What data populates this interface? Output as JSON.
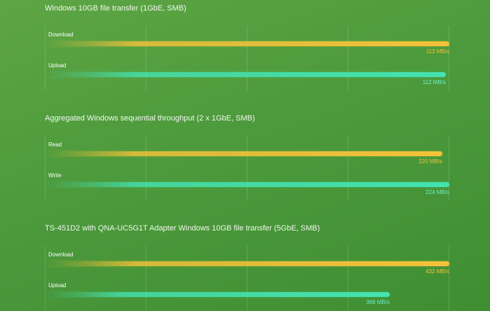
{
  "colors": {
    "download": "#f6c23a",
    "upload": "#44e3b1",
    "read": "#f6c23a",
    "write": "#44e3b1",
    "download_label": "#f6c23a",
    "upload_label": "#6ff0c8"
  },
  "chart_data": [
    {
      "type": "bar",
      "title": "Windows 10GB file transfer (1GbE, SMB)",
      "orientation": "horizontal",
      "unit": "MB/s",
      "series": [
        {
          "name": "Download",
          "value": 113,
          "value_label": "113 MB/s",
          "color_key": "download"
        },
        {
          "name": "Upload",
          "value": 112,
          "value_label": "112 MB/s",
          "color_key": "upload"
        }
      ],
      "max": 113
    },
    {
      "type": "bar",
      "title": "Aggregated Windows sequential throughput (2 x 1GbE, SMB)",
      "orientation": "horizontal",
      "unit": "MB/s",
      "series": [
        {
          "name": "Read",
          "value": 220,
          "value_label": "220 MB/s",
          "color_key": "read"
        },
        {
          "name": "Write",
          "value": 224,
          "value_label": "224 MB/s",
          "color_key": "write"
        }
      ],
      "max": 224
    },
    {
      "type": "bar",
      "title": "TS-451D2 with QNA-UC5G1T Adapter Windows 10GB file transfer (5GbE, SMB)",
      "orientation": "horizontal",
      "unit": "MB/s",
      "series": [
        {
          "name": "Download",
          "value": 432,
          "value_label": "432 MB/s",
          "color_key": "download"
        },
        {
          "name": "Upload",
          "value": 368,
          "value_label": "368 MB/s",
          "color_key": "upload"
        }
      ],
      "max": 432
    }
  ]
}
